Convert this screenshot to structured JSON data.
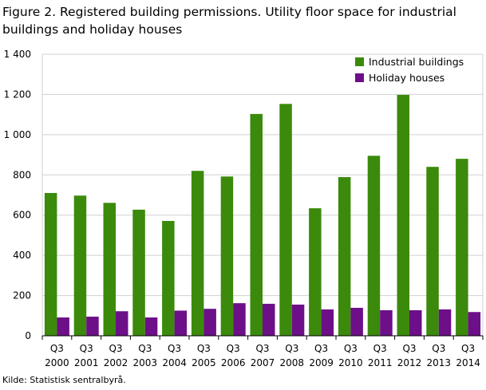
{
  "title": "Figure 2. Registered building permissions.  Utility floor space for industrial buildings and holiday houses",
  "source": "Kilde: Statistisk sentralbyrå.",
  "chart_data": {
    "type": "bar",
    "categories": [
      [
        "Q3",
        "2000"
      ],
      [
        "Q3",
        "2001"
      ],
      [
        "Q3",
        "2002"
      ],
      [
        "Q3",
        "2003"
      ],
      [
        "Q3",
        "2004"
      ],
      [
        "Q3",
        "2005"
      ],
      [
        "Q3",
        "2006"
      ],
      [
        "Q3",
        "2007"
      ],
      [
        "Q3",
        "2008"
      ],
      [
        "Q3",
        "2009"
      ],
      [
        "Q3",
        "2010"
      ],
      [
        "Q3",
        "2011"
      ],
      [
        "Q3",
        "2012"
      ],
      [
        "Q3",
        "2013"
      ],
      [
        "Q3",
        "2014"
      ]
    ],
    "series": [
      {
        "name": "Industrial buildings",
        "color": "#3b8a0c",
        "values": [
          710,
          697,
          661,
          627,
          571,
          820,
          792,
          1103,
          1153,
          634,
          789,
          895,
          1198,
          840,
          880
        ]
      },
      {
        "name": "Holiday houses",
        "color": "#6d0f88",
        "values": [
          91,
          95,
          122,
          91,
          125,
          134,
          162,
          159,
          155,
          131,
          139,
          127,
          127,
          131,
          118
        ]
      }
    ],
    "yticks": [
      "0",
      "200",
      "400",
      "600",
      "800",
      "1 000",
      "1 200",
      "1 400"
    ],
    "ylim": [
      0,
      1400
    ],
    "grid": true,
    "legend_position": "top-right"
  }
}
